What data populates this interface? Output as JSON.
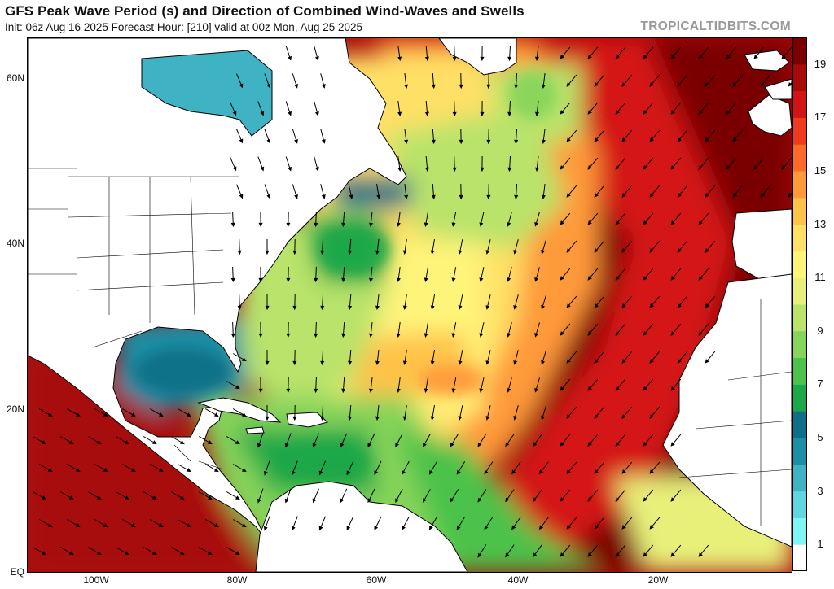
{
  "header": {
    "title": "GFS Peak Wave Period (s) and Direction of Combined Wind-Waves and Swells",
    "subtitle": "Init: 06z Aug 16 2025   Forecast Hour: [210]   valid at 00z Mon, Aug 25 2025",
    "brand": "TROPICALTIDBITS.COM"
  },
  "axes": {
    "lat_labels": [
      {
        "text": "60N",
        "value": 60
      },
      {
        "text": "40N",
        "value": 40
      },
      {
        "text": "20N",
        "value": 20
      },
      {
        "text": "EQ",
        "value": 0
      }
    ],
    "lon_labels": [
      {
        "text": "100W",
        "value": -100
      },
      {
        "text": "80W",
        "value": -80
      },
      {
        "text": "60W",
        "value": -60
      },
      {
        "text": "40W",
        "value": -40
      },
      {
        "text": "20W",
        "value": -20
      }
    ]
  },
  "colorbar": {
    "labels": [
      "1",
      "3",
      "5",
      "7",
      "9",
      "11",
      "13",
      "15",
      "17",
      "19"
    ],
    "colors": [
      "#ffffff",
      "#7ff5f5",
      "#5fd6e0",
      "#3fb2c4",
      "#1a8fa6",
      "#0e6f86",
      "#1aa84a",
      "#4cc24a",
      "#86d45a",
      "#b9e36a",
      "#e8f07a",
      "#fff47a",
      "#ffe066",
      "#ffc24a",
      "#ff9a3a",
      "#ff6a2a",
      "#f03a1e",
      "#d41414",
      "#a80a0a",
      "#7a0000"
    ]
  },
  "colors": {
    "land": "#ffffff",
    "coast": "#000000",
    "arrow": "#000000"
  }
}
